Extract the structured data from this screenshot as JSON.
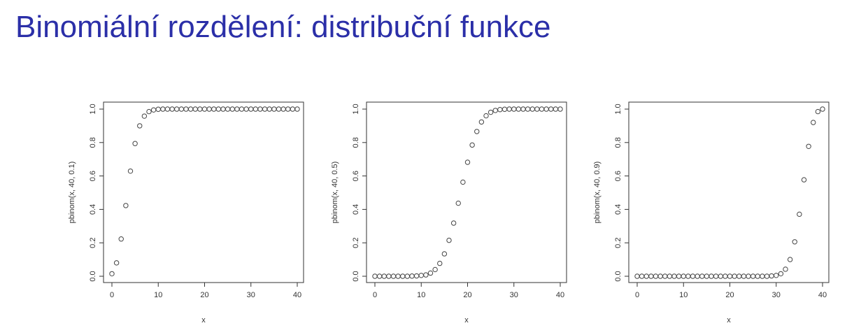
{
  "slide": {
    "title": "Binomiální rozdělení: distribuční funkce"
  },
  "colors": {
    "title": "#2b2fa8",
    "points": "#444444",
    "axis": "#333333"
  },
  "chart_data": [
    {
      "type": "scatter",
      "n": 40,
      "p": 0.1,
      "xlabel": "x",
      "ylabel": "pbinom(x, 40, 0.1)",
      "xlim": [
        0,
        40
      ],
      "ylim": [
        0,
        1
      ],
      "xticks": [
        "0",
        "10",
        "20",
        "30",
        "40"
      ],
      "yticks": [
        "0.0",
        "0.2",
        "0.4",
        "0.6",
        "0.8",
        "1.0"
      ],
      "x": [
        0,
        1,
        2,
        3,
        4,
        5,
        6,
        7,
        8,
        9,
        10,
        11,
        12,
        13,
        14,
        15,
        16,
        17,
        18,
        19,
        20,
        21,
        22,
        23,
        24,
        25,
        26,
        27,
        28,
        29,
        30,
        31,
        32,
        33,
        34,
        35,
        36,
        37,
        38,
        39,
        40
      ],
      "y": [
        0.015,
        0.08,
        0.223,
        0.423,
        0.629,
        0.794,
        0.9,
        0.958,
        0.985,
        0.995,
        0.999,
        1,
        1,
        1,
        1,
        1,
        1,
        1,
        1,
        1,
        1,
        1,
        1,
        1,
        1,
        1,
        1,
        1,
        1,
        1,
        1,
        1,
        1,
        1,
        1,
        1,
        1,
        1,
        1,
        1,
        1
      ]
    },
    {
      "type": "scatter",
      "n": 40,
      "p": 0.5,
      "xlabel": "x",
      "ylabel": "pbinom(x, 40, 0.5)",
      "xlim": [
        0,
        40
      ],
      "ylim": [
        0,
        1
      ],
      "xticks": [
        "0",
        "10",
        "20",
        "30",
        "40"
      ],
      "yticks": [
        "0.0",
        "0.2",
        "0.4",
        "0.6",
        "0.8",
        "1.0"
      ],
      "x": [
        0,
        1,
        2,
        3,
        4,
        5,
        6,
        7,
        8,
        9,
        10,
        11,
        12,
        13,
        14,
        15,
        16,
        17,
        18,
        19,
        20,
        21,
        22,
        23,
        24,
        25,
        26,
        27,
        28,
        29,
        30,
        31,
        32,
        33,
        34,
        35,
        36,
        37,
        38,
        39,
        40
      ],
      "y": [
        0,
        0,
        0,
        0,
        0,
        0,
        0,
        0,
        0.001,
        0.002,
        0.005,
        0.008,
        0.019,
        0.04,
        0.077,
        0.134,
        0.215,
        0.318,
        0.437,
        0.563,
        0.682,
        0.785,
        0.866,
        0.923,
        0.96,
        0.981,
        0.992,
        0.997,
        0.999,
        1,
        1,
        1,
        1,
        1,
        1,
        1,
        1,
        1,
        1,
        1,
        1
      ]
    },
    {
      "type": "scatter",
      "n": 40,
      "p": 0.9,
      "xlabel": "x",
      "ylabel": "pbinom(x, 40, 0.9)",
      "xlim": [
        0,
        40
      ],
      "ylim": [
        0,
        1
      ],
      "xticks": [
        "0",
        "10",
        "20",
        "30",
        "40"
      ],
      "yticks": [
        "0.0",
        "0.2",
        "0.4",
        "0.6",
        "0.8",
        "1.0"
      ],
      "x": [
        0,
        1,
        2,
        3,
        4,
        5,
        6,
        7,
        8,
        9,
        10,
        11,
        12,
        13,
        14,
        15,
        16,
        17,
        18,
        19,
        20,
        21,
        22,
        23,
        24,
        25,
        26,
        27,
        28,
        29,
        30,
        31,
        32,
        33,
        34,
        35,
        36,
        37,
        38,
        39,
        40
      ],
      "y": [
        0,
        0,
        0,
        0,
        0,
        0,
        0,
        0,
        0,
        0,
        0,
        0,
        0,
        0,
        0,
        0,
        0,
        0,
        0,
        0,
        0,
        0,
        0,
        0,
        0,
        0,
        0,
        0,
        0,
        0.002,
        0.005,
        0.015,
        0.042,
        0.1,
        0.206,
        0.371,
        0.577,
        0.777,
        0.92,
        0.985,
        1.0
      ]
    }
  ]
}
